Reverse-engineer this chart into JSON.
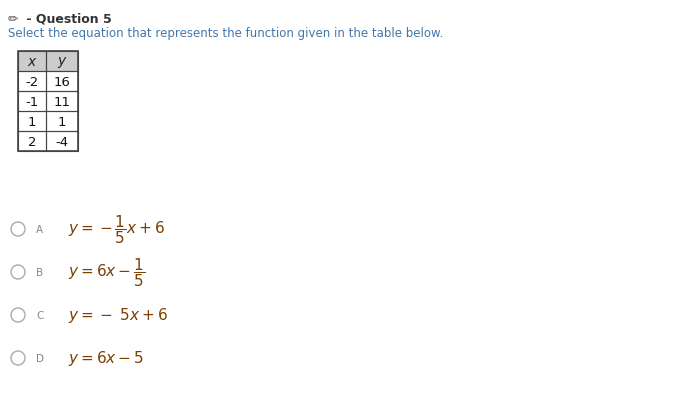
{
  "title_pencil": "✏",
  "title_text": " - Question 5",
  "subtitle": "Select the equation that represents the function given in the table below.",
  "title_color": "#333333",
  "subtitle_color": "#4477aa",
  "table_headers": [
    "x",
    "y"
  ],
  "table_data": [
    [
      -2,
      16
    ],
    [
      -1,
      11
    ],
    [
      1,
      1
    ],
    [
      2,
      -4
    ]
  ],
  "background_color": "#ffffff",
  "table_header_bg": "#cccccc",
  "table_border_color": "#444444",
  "option_circle_color": "#aaaaaa",
  "option_label_color": "#888888",
  "option_text_color": "#333333",
  "equation_color": "#7b3f00",
  "fig_width": 6.91,
  "fig_height": 4.02,
  "dpi": 100
}
